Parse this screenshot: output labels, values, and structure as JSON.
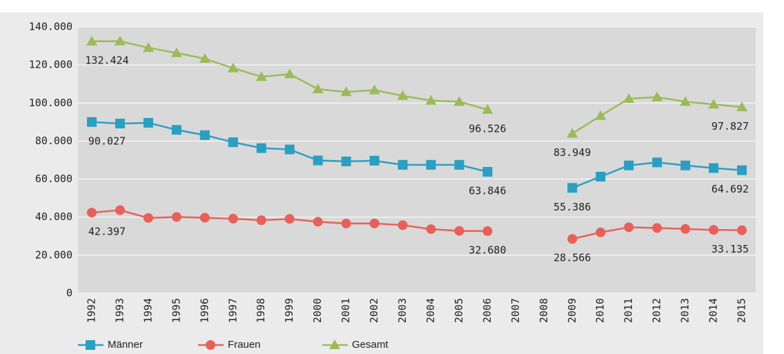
{
  "chart_data": {
    "type": "line",
    "categories": [
      "1992",
      "1993",
      "1994",
      "1995",
      "1996",
      "1997",
      "1998",
      "1999",
      "2000",
      "2001",
      "2002",
      "2003",
      "2004",
      "2005",
      "2006",
      "2007",
      "2008",
      "2009",
      "2010",
      "2011",
      "2012",
      "2013",
      "2014",
      "2015"
    ],
    "series": [
      {
        "name": "Männer",
        "color": "#2b9fc1",
        "marker": "square",
        "values": [
          90027,
          89200,
          89600,
          85900,
          83100,
          79400,
          76300,
          75600,
          69800,
          69300,
          69700,
          67500,
          67500,
          67500,
          63846,
          null,
          null,
          55386,
          61300,
          67200,
          68800,
          67200,
          65800,
          64692
        ],
        "value_labels": [
          "90.027",
          null,
          null,
          null,
          null,
          null,
          null,
          null,
          null,
          null,
          null,
          null,
          null,
          null,
          "63.846",
          null,
          null,
          "55.386",
          null,
          null,
          null,
          null,
          null,
          "64.692"
        ]
      },
      {
        "name": "Frauen",
        "color": "#e8605a",
        "marker": "circle",
        "values": [
          42397,
          43700,
          39600,
          40100,
          39700,
          39200,
          38400,
          39100,
          37600,
          36700,
          36700,
          35800,
          33700,
          32800,
          32680,
          null,
          null,
          28566,
          32000,
          34700,
          34300,
          33800,
          33300,
          33135
        ],
        "value_labels": [
          "42.397",
          null,
          null,
          null,
          null,
          null,
          null,
          null,
          null,
          null,
          null,
          null,
          null,
          null,
          "32.680",
          null,
          null,
          "28.566",
          null,
          null,
          null,
          null,
          null,
          "33.135"
        ]
      },
      {
        "name": "Gesamt",
        "color": "#9bbb59",
        "marker": "triangle",
        "values": [
          132424,
          132500,
          129000,
          126300,
          123300,
          118300,
          113800,
          115200,
          107300,
          105800,
          106800,
          103800,
          101300,
          100700,
          96526,
          null,
          null,
          83949,
          93300,
          102300,
          103100,
          100700,
          99300,
          97827
        ],
        "value_labels": [
          "132.424",
          null,
          null,
          null,
          null,
          null,
          null,
          null,
          null,
          null,
          null,
          null,
          null,
          null,
          "96.526",
          null,
          null,
          "83.949",
          null,
          null,
          null,
          null,
          null,
          "97.827"
        ]
      }
    ],
    "ylim": [
      0,
      140000
    ],
    "yticks": [
      0,
      {
        "value": 20000,
        "label": "20.000"
      },
      {
        "value": 40000,
        "label": "40.000"
      },
      {
        "value": 60000,
        "label": "60.000"
      },
      {
        "value": 80000,
        "label": "80.000"
      },
      {
        "value": 100000,
        "label": "100.000"
      },
      {
        "value": 120000,
        "label": "120.000"
      },
      {
        "value": 140000,
        "label": "140.000"
      }
    ],
    "grid": true,
    "legend": "bottom"
  }
}
